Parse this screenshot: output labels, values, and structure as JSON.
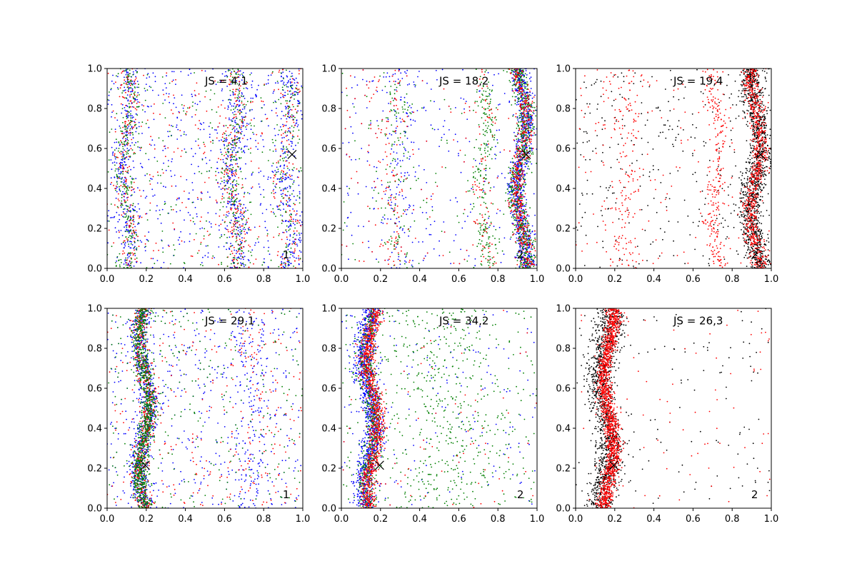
{
  "figure": {
    "rows": 2,
    "cols": 3
  },
  "chart_data": [
    {
      "type": "scatter",
      "js_label": "JS = 4,1",
      "panel_number": "1",
      "xlim": [
        0,
        1
      ],
      "ylim": [
        0,
        1
      ],
      "xticks": [
        "0.0",
        "0.2",
        "0.4",
        "0.6",
        "0.8",
        "1.0"
      ],
      "yticks": [
        "0.0",
        "0.2",
        "0.4",
        "0.6",
        "0.8",
        "1.0"
      ],
      "marker": {
        "x": 0.945,
        "y": 0.57
      },
      "series": [
        {
          "color": "#0000ff",
          "count": 1300,
          "bands": [
            {
              "center": 0.1,
              "width": 0.025,
              "weight": 0.22
            },
            {
              "center": 0.65,
              "width": 0.03,
              "weight": 0.22
            },
            {
              "center": 0.92,
              "width": 0.03,
              "weight": 0.18
            },
            {
              "uniform": true,
              "weight": 0.38
            }
          ]
        },
        {
          "color": "#ff0000",
          "count": 700,
          "bands": [
            {
              "center": 0.1,
              "width": 0.025,
              "weight": 0.25
            },
            {
              "center": 0.65,
              "width": 0.03,
              "weight": 0.25
            },
            {
              "center": 0.92,
              "width": 0.03,
              "weight": 0.15
            },
            {
              "uniform": true,
              "weight": 0.35
            }
          ]
        },
        {
          "color": "#007f00",
          "count": 800,
          "bands": [
            {
              "center": 0.1,
              "width": 0.025,
              "weight": 0.3
            },
            {
              "center": 0.65,
              "width": 0.03,
              "weight": 0.25
            },
            {
              "center": 0.92,
              "width": 0.03,
              "weight": 0.15
            },
            {
              "uniform": true,
              "weight": 0.3
            }
          ]
        }
      ]
    },
    {
      "type": "scatter",
      "js_label": "JS = 18,2",
      "panel_number": "2",
      "xlim": [
        0,
        1
      ],
      "ylim": [
        0,
        1
      ],
      "xticks": [
        "0.0",
        "0.2",
        "0.4",
        "0.6",
        "0.8",
        "1.0"
      ],
      "yticks": [
        "0.0",
        "0.2",
        "0.4",
        "0.6",
        "0.8",
        "1.0"
      ],
      "marker": {
        "x": 0.945,
        "y": 0.57
      },
      "series": [
        {
          "color": "#0000ff",
          "count": 1500,
          "bands": [
            {
              "center": 0.92,
              "width": 0.022,
              "weight": 0.7
            },
            {
              "center": 0.3,
              "width": 0.05,
              "weight": 0.08
            },
            {
              "uniform": true,
              "weight": 0.22
            }
          ]
        },
        {
          "color": "#007f00",
          "count": 1100,
          "bands": [
            {
              "center": 0.92,
              "width": 0.022,
              "weight": 0.6
            },
            {
              "center": 0.73,
              "width": 0.025,
              "weight": 0.2
            },
            {
              "center": 0.28,
              "width": 0.04,
              "weight": 0.1
            },
            {
              "uniform": true,
              "weight": 0.1
            }
          ]
        },
        {
          "color": "#ff0000",
          "count": 800,
          "bands": [
            {
              "center": 0.92,
              "width": 0.022,
              "weight": 0.6
            },
            {
              "center": 0.73,
              "width": 0.025,
              "weight": 0.12
            },
            {
              "center": 0.25,
              "width": 0.04,
              "weight": 0.13
            },
            {
              "uniform": true,
              "weight": 0.15
            }
          ]
        }
      ]
    },
    {
      "type": "scatter",
      "js_label": "JS = 19,4",
      "panel_number": "2",
      "xlim": [
        0,
        1
      ],
      "ylim": [
        0,
        1
      ],
      "xticks": [
        "0.0",
        "0.2",
        "0.4",
        "0.6",
        "0.8",
        "1.0"
      ],
      "yticks": [
        "0.0",
        "0.2",
        "0.4",
        "0.6",
        "0.8",
        "1.0"
      ],
      "marker": {
        "x": 0.945,
        "y": 0.57
      },
      "series": [
        {
          "color": "#000000",
          "count": 1500,
          "bands": [
            {
              "center": 0.92,
              "width": 0.03,
              "weight": 0.78
            },
            {
              "uniform": true,
              "weight": 0.22
            }
          ]
        },
        {
          "color": "#ff0000",
          "count": 1300,
          "bands": [
            {
              "center": 0.92,
              "width": 0.02,
              "weight": 0.55
            },
            {
              "center": 0.72,
              "width": 0.025,
              "weight": 0.2
            },
            {
              "center": 0.25,
              "width": 0.04,
              "weight": 0.12
            },
            {
              "uniform": true,
              "weight": 0.13
            }
          ]
        }
      ]
    },
    {
      "type": "scatter",
      "js_label": "JS = 29,1",
      "panel_number": "1",
      "xlim": [
        0,
        1
      ],
      "ylim": [
        0,
        1
      ],
      "xticks": [
        "0.0",
        "0.2",
        "0.4",
        "0.6",
        "0.8",
        "1.0"
      ],
      "yticks": [
        "0.0",
        "0.2",
        "0.4",
        "0.6",
        "0.8",
        "1.0"
      ],
      "marker": {
        "x": 0.195,
        "y": 0.215
      },
      "series": [
        {
          "color": "#0000ff",
          "count": 1500,
          "bands": [
            {
              "center": 0.19,
              "width": 0.025,
              "weight": 0.55
            },
            {
              "center": 0.75,
              "width": 0.05,
              "weight": 0.1
            },
            {
              "uniform": true,
              "weight": 0.35
            }
          ]
        },
        {
          "color": "#ff0000",
          "count": 800,
          "bands": [
            {
              "center": 0.19,
              "width": 0.02,
              "weight": 0.6
            },
            {
              "center": 0.75,
              "width": 0.05,
              "weight": 0.1
            },
            {
              "uniform": true,
              "weight": 0.3
            }
          ]
        },
        {
          "color": "#007f00",
          "count": 1200,
          "bands": [
            {
              "center": 0.19,
              "width": 0.02,
              "weight": 0.75
            },
            {
              "uniform": true,
              "weight": 0.25
            }
          ]
        }
      ]
    },
    {
      "type": "scatter",
      "js_label": "JS = 34,2",
      "panel_number": "2",
      "xlim": [
        0,
        1
      ],
      "ylim": [
        0,
        1
      ],
      "xticks": [
        "0.0",
        "0.2",
        "0.4",
        "0.6",
        "0.8",
        "1.0"
      ],
      "yticks": [
        "0.0",
        "0.2",
        "0.4",
        "0.6",
        "0.8",
        "1.0"
      ],
      "marker": {
        "x": 0.195,
        "y": 0.215
      },
      "series": [
        {
          "color": "#0000ff",
          "count": 1400,
          "bands": [
            {
              "center": 0.14,
              "width": 0.025,
              "weight": 0.85
            },
            {
              "uniform": true,
              "weight": 0.15
            }
          ]
        },
        {
          "color": "#007f00",
          "count": 1200,
          "bands": [
            {
              "center": 0.15,
              "width": 0.025,
              "weight": 0.45
            },
            {
              "center": 0.55,
              "width": 0.15,
              "weight": 0.3
            },
            {
              "uniform": true,
              "weight": 0.25
            }
          ]
        },
        {
          "color": "#ff0000",
          "count": 1000,
          "bands": [
            {
              "center": 0.16,
              "width": 0.02,
              "weight": 0.92
            },
            {
              "uniform": true,
              "weight": 0.08
            }
          ]
        }
      ]
    },
    {
      "type": "scatter",
      "js_label": "JS = 26,3",
      "panel_number": "2",
      "xlim": [
        0,
        1
      ],
      "ylim": [
        0,
        1
      ],
      "xticks": [
        "0.0",
        "0.2",
        "0.4",
        "0.6",
        "0.8",
        "1.0"
      ],
      "yticks": [
        "0.0",
        "0.2",
        "0.4",
        "0.6",
        "0.8",
        "1.0"
      ],
      "marker": {
        "x": 0.195,
        "y": 0.215
      },
      "series": [
        {
          "color": "#000000",
          "count": 1400,
          "bands": [
            {
              "center": 0.15,
              "width": 0.035,
              "weight": 0.9
            },
            {
              "uniform": true,
              "weight": 0.1
            }
          ]
        },
        {
          "color": "#ff0000",
          "count": 1600,
          "bands": [
            {
              "center": 0.17,
              "width": 0.02,
              "weight": 0.95
            },
            {
              "uniform": true,
              "weight": 0.05
            }
          ]
        }
      ]
    }
  ]
}
